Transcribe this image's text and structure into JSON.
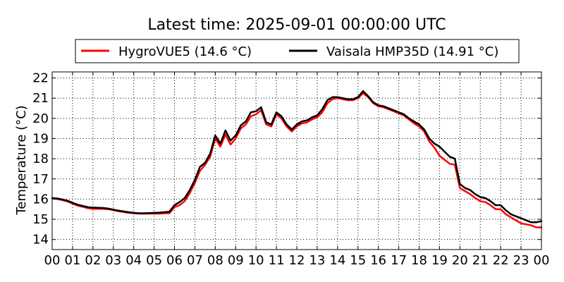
{
  "chart_data": {
    "type": "line",
    "title": "Latest time: 2025-09-01 00:00:00 UTC",
    "ylabel": "Temperature (°C)",
    "xlabel": "",
    "xlim": [
      0,
      24
    ],
    "ylim": [
      13.5,
      22.3
    ],
    "yticks": [
      14,
      15,
      16,
      17,
      18,
      19,
      20,
      21,
      22
    ],
    "xtick_labels": [
      "00",
      "01",
      "02",
      "03",
      "04",
      "05",
      "06",
      "07",
      "08",
      "09",
      "10",
      "11",
      "12",
      "13",
      "14",
      "15",
      "16",
      "17",
      "18",
      "19",
      "20",
      "21",
      "22",
      "23",
      "00"
    ],
    "grid": true,
    "legend_position": "top",
    "x": [
      0,
      0.25,
      0.5,
      0.75,
      1,
      1.25,
      1.5,
      1.75,
      2,
      2.25,
      2.5,
      2.75,
      3,
      3.25,
      3.5,
      3.75,
      4,
      4.25,
      4.5,
      4.75,
      5,
      5.25,
      5.5,
      5.75,
      6,
      6.25,
      6.5,
      6.75,
      7,
      7.25,
      7.5,
      7.75,
      8,
      8.25,
      8.5,
      8.75,
      9,
      9.25,
      9.5,
      9.75,
      10,
      10.25,
      10.5,
      10.75,
      11,
      11.25,
      11.5,
      11.75,
      12,
      12.25,
      12.5,
      12.75,
      13,
      13.25,
      13.5,
      13.75,
      14,
      14.25,
      14.5,
      14.75,
      15,
      15.25,
      15.5,
      15.75,
      16,
      16.25,
      16.5,
      16.75,
      17,
      17.25,
      17.5,
      17.75,
      18,
      18.25,
      18.5,
      18.75,
      19,
      19.25,
      19.5,
      19.75,
      20,
      20.25,
      20.5,
      20.75,
      21,
      21.25,
      21.5,
      21.75,
      22,
      22.25,
      22.5,
      22.75,
      23,
      23.25,
      23.5,
      23.75,
      24
    ],
    "series": [
      {
        "name": "HygroVUE5 (14.6 °C)",
        "color": "#ff0000",
        "values": [
          16.05,
          16.0,
          15.95,
          15.88,
          15.78,
          15.68,
          15.62,
          15.55,
          15.52,
          15.52,
          15.52,
          15.5,
          15.45,
          15.4,
          15.36,
          15.32,
          15.3,
          15.28,
          15.28,
          15.28,
          15.28,
          15.28,
          15.3,
          15.3,
          15.6,
          15.7,
          15.9,
          16.3,
          16.8,
          17.4,
          17.7,
          18.1,
          19.0,
          18.6,
          19.2,
          18.7,
          19.0,
          19.5,
          19.7,
          20.1,
          20.2,
          20.4,
          19.7,
          19.6,
          20.2,
          20.0,
          19.6,
          19.35,
          19.6,
          19.75,
          19.8,
          19.95,
          20.05,
          20.3,
          20.75,
          20.95,
          21.0,
          20.95,
          20.9,
          20.9,
          21.0,
          21.25,
          21.05,
          20.75,
          20.6,
          20.55,
          20.45,
          20.35,
          20.25,
          20.15,
          19.95,
          19.75,
          19.6,
          19.35,
          18.85,
          18.55,
          18.15,
          17.95,
          17.75,
          17.7,
          16.55,
          16.4,
          16.25,
          16.05,
          15.9,
          15.85,
          15.7,
          15.5,
          15.5,
          15.25,
          15.1,
          14.95,
          14.8,
          14.75,
          14.7,
          14.6,
          14.6
        ]
      },
      {
        "name": "Vaisala HMP35D (14.91 °C)",
        "color": "#000000",
        "values": [
          16.05,
          16.03,
          15.98,
          15.92,
          15.82,
          15.72,
          15.66,
          15.6,
          15.58,
          15.57,
          15.56,
          15.53,
          15.48,
          15.43,
          15.39,
          15.35,
          15.32,
          15.3,
          15.3,
          15.31,
          15.32,
          15.33,
          15.35,
          15.38,
          15.7,
          15.85,
          16.05,
          16.45,
          16.95,
          17.6,
          17.8,
          18.25,
          19.15,
          18.75,
          19.4,
          18.9,
          19.15,
          19.65,
          19.85,
          20.3,
          20.35,
          20.55,
          19.8,
          19.7,
          20.3,
          20.1,
          19.7,
          19.45,
          19.7,
          19.85,
          19.9,
          20.05,
          20.15,
          20.45,
          20.9,
          21.05,
          21.05,
          21.0,
          20.95,
          20.95,
          21.05,
          21.35,
          21.1,
          20.8,
          20.65,
          20.6,
          20.5,
          20.4,
          20.3,
          20.2,
          20.0,
          19.85,
          19.7,
          19.45,
          19.0,
          18.75,
          18.6,
          18.35,
          18.1,
          18.0,
          16.75,
          16.55,
          16.45,
          16.25,
          16.1,
          16.05,
          15.9,
          15.7,
          15.7,
          15.45,
          15.25,
          15.15,
          15.05,
          14.95,
          14.85,
          14.85,
          14.91
        ]
      }
    ]
  }
}
